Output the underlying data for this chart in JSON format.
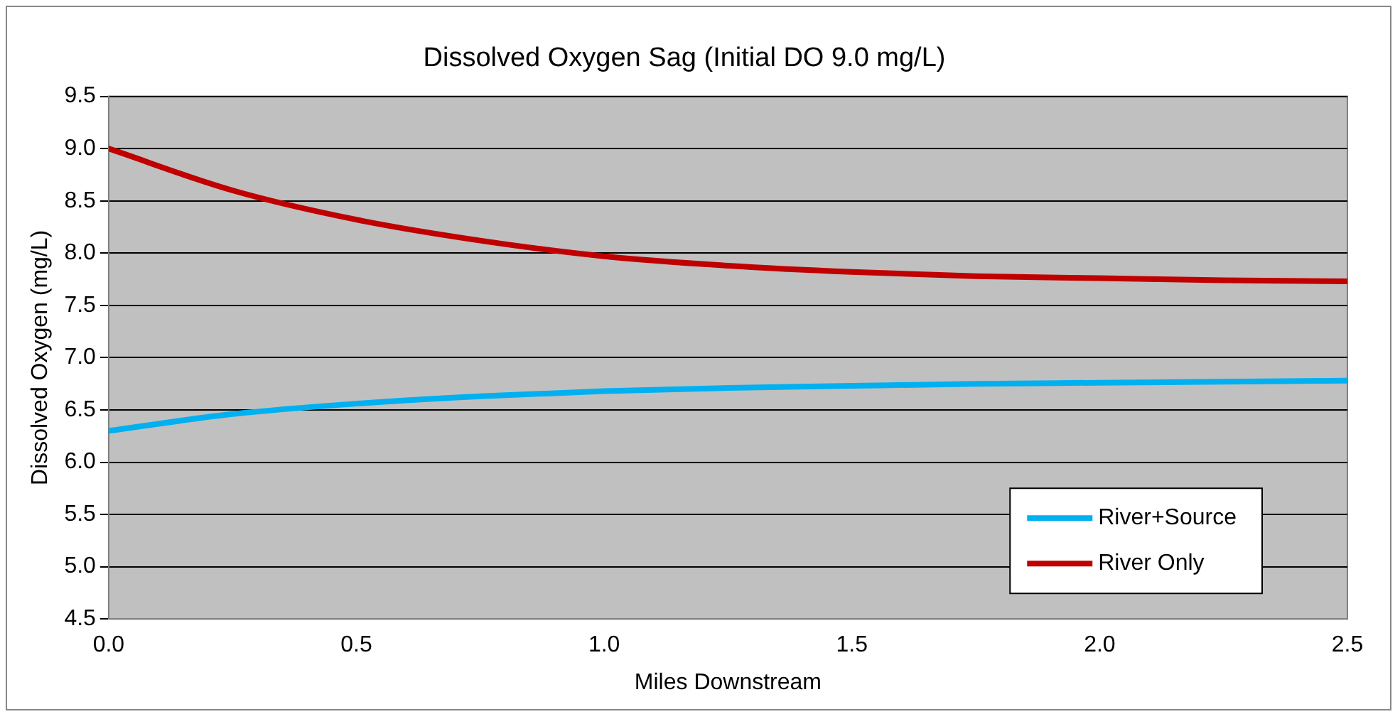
{
  "chart_data": {
    "type": "line",
    "title": "Dissolved Oxygen Sag (Initial DO 9.0 mg/L)",
    "xlabel": "Miles Downstream",
    "ylabel": "Dissolved Oxygen (mg/L)",
    "x": [
      0,
      0.25,
      0.5,
      0.75,
      1,
      1.25,
      1.5,
      1.75,
      2,
      2.25,
      2.5
    ],
    "series": [
      {
        "name": "River+Source",
        "color": "#00b0f0",
        "values": [
          6.3,
          6.46,
          6.56,
          6.63,
          6.68,
          6.71,
          6.73,
          6.75,
          6.76,
          6.77,
          6.78
        ]
      },
      {
        "name": "River Only",
        "color": "#c00000",
        "values": [
          9.0,
          8.6,
          8.32,
          8.12,
          7.97,
          7.88,
          7.82,
          7.78,
          7.76,
          7.74,
          7.73
        ]
      }
    ],
    "xlim": [
      0,
      2.5
    ],
    "xticks": [
      {
        "value": 0,
        "label": "0.0"
      },
      {
        "value": 0.5,
        "label": "0.5"
      },
      {
        "value": 1,
        "label": "1.0"
      },
      {
        "value": 1.5,
        "label": "1.5"
      },
      {
        "value": 2,
        "label": "2.0"
      },
      {
        "value": 2.5,
        "label": "2.5"
      }
    ],
    "ylim": [
      4.5,
      9.5
    ],
    "yticks": [
      {
        "value": 4.5,
        "label": "4.5"
      },
      {
        "value": 5,
        "label": "5.0"
      },
      {
        "value": 5.5,
        "label": "5.5"
      },
      {
        "value": 6,
        "label": "6.0"
      },
      {
        "value": 6.5,
        "label": "6.5"
      },
      {
        "value": 7,
        "label": "7.0"
      },
      {
        "value": 7.5,
        "label": "7.5"
      },
      {
        "value": 8,
        "label": "8.0"
      },
      {
        "value": 8.5,
        "label": "8.5"
      },
      {
        "value": 9,
        "label": "9.0"
      },
      {
        "value": 9.5,
        "label": "9.5"
      }
    ],
    "grid": "y",
    "legend": "bottom right",
    "marker": "none",
    "line_style": "solid"
  }
}
